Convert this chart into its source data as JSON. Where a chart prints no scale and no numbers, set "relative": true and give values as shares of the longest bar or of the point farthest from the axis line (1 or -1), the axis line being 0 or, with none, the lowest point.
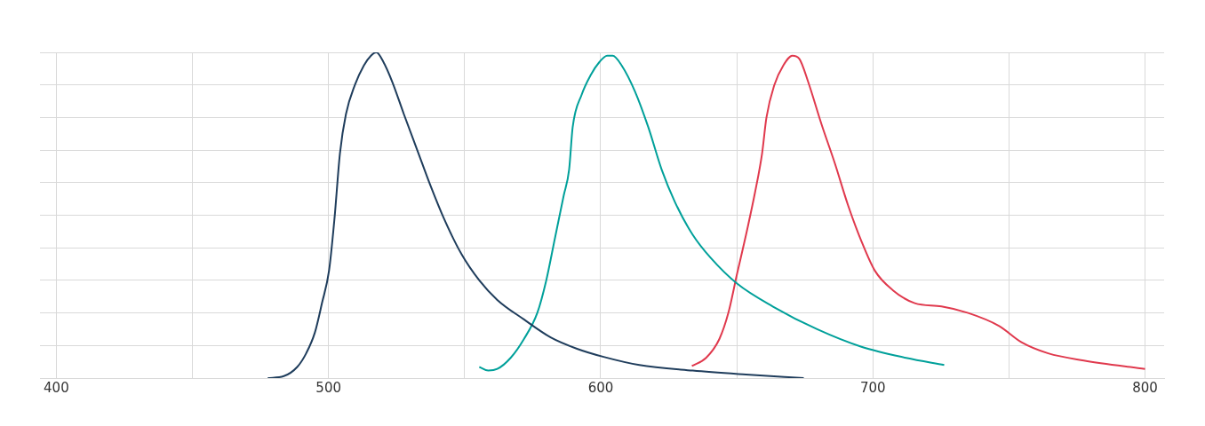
{
  "chart_data": {
    "type": "line",
    "relative": true,
    "grid": true,
    "legend": false,
    "marker": "none",
    "line_style": "solid",
    "xlim": [
      394,
      807
    ],
    "xticks": [
      400,
      {
        "value": 450,
        "label": null
      },
      500,
      {
        "value": 550,
        "label": null
      },
      600,
      {
        "value": 650,
        "label": null
      },
      700,
      {
        "value": 750,
        "label": null
      },
      800
    ],
    "series": [
      {
        "color": "#1f3d5c",
        "x": [
          477.7,
          483.6,
          488.5,
          491.8,
          495,
          497.6,
          500.2,
          502.2,
          504.2,
          506.4,
          509.7,
          513,
          515.6,
          517.6,
          520.2,
          523.4,
          527.7,
          532.6,
          537.5,
          542.4,
          548.9,
          555.4,
          562,
          571.8,
          581.6,
          591.3,
          601.1,
          614.2,
          633.8,
          653.4,
          674.6
        ],
        "values": [
          0,
          0.006,
          0.034,
          0.076,
          0.14,
          0.23,
          0.33,
          0.49,
          0.69,
          0.81,
          0.9,
          0.96,
          0.99,
          1,
          0.97,
          0.91,
          0.81,
          0.7,
          0.59,
          0.49,
          0.38,
          0.3,
          0.24,
          0.18,
          0.125,
          0.09,
          0.065,
          0.04,
          0.023,
          0.011,
          0
        ]
      },
      {
        "color": "#00a09a",
        "x": [
          555.4,
          558.7,
          562,
          566.9,
          571.8,
          576.7,
          580,
          583.2,
          586.4,
          588.4,
          589.7,
          593,
          596.3,
          599.5,
          602.4,
          604.4,
          607.7,
          612.6,
          617.5,
          622.4,
          627.3,
          633.8,
          640.3,
          650.1,
          663.2,
          679.5,
          695.8,
          712.2,
          726.2
        ],
        "values": [
          0.034,
          0.023,
          0.028,
          0.062,
          0.12,
          0.2,
          0.3,
          0.43,
          0.56,
          0.64,
          0.77,
          0.87,
          0.93,
          0.97,
          0.99,
          0.99,
          0.96,
          0.88,
          0.77,
          0.64,
          0.54,
          0.44,
          0.37,
          0.29,
          0.22,
          0.15,
          0.096,
          0.062,
          0.04
        ]
      },
      {
        "color": "#e0394d",
        "x": [
          633.5,
          638.7,
          643.6,
          646.9,
          650.1,
          653.4,
          656.7,
          659.3,
          660.9,
          663.8,
          667.1,
          670.4,
          673,
          676.2,
          681.1,
          686,
          690.9,
          695.8,
          700.7,
          707.3,
          715.4,
          725.2,
          735,
          746.4,
          754.6,
          764.4,
          777.5,
          800
        ],
        "values": [
          0.037,
          0.062,
          0.12,
          0.2,
          0.32,
          0.44,
          0.57,
          0.69,
          0.8,
          0.9,
          0.96,
          0.99,
          0.98,
          0.91,
          0.78,
          0.66,
          0.53,
          0.42,
          0.33,
          0.27,
          0.23,
          0.22,
          0.2,
          0.16,
          0.11,
          0.076,
          0.054,
          0.028
        ]
      }
    ]
  }
}
